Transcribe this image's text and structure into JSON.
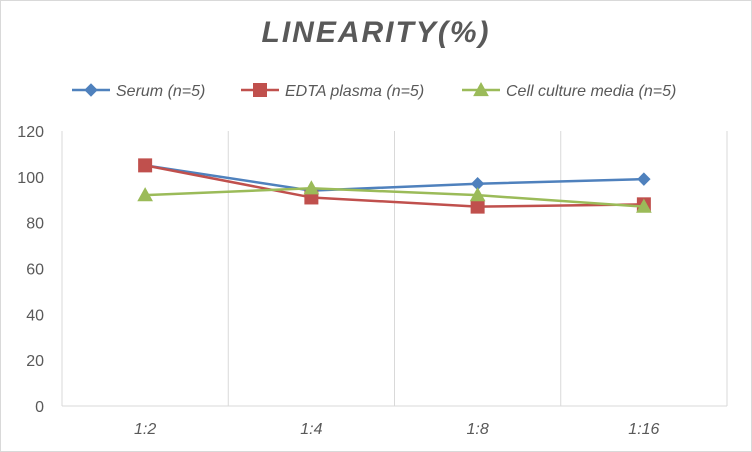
{
  "chart_data": {
    "type": "line",
    "title": "LINEARITY(%)",
    "categories": [
      "1:2",
      "1:4",
      "1:8",
      "1:16"
    ],
    "ylim": [
      0,
      120
    ],
    "yticks": [
      0,
      20,
      40,
      60,
      80,
      100,
      120
    ],
    "grid": "vertical",
    "legend_position": "top",
    "series": [
      {
        "name": "Serum (n=5)",
        "values": [
          105,
          94,
          97,
          99
        ],
        "color": "#4f81bd",
        "marker": "diamond"
      },
      {
        "name": "EDTA plasma (n=5)",
        "values": [
          105,
          91,
          87,
          88
        ],
        "color": "#c0504d",
        "marker": "square"
      },
      {
        "name": "Cell culture media (n=5)",
        "values": [
          92,
          95,
          92,
          87
        ],
        "color": "#9bbb59",
        "marker": "triangle"
      }
    ]
  }
}
